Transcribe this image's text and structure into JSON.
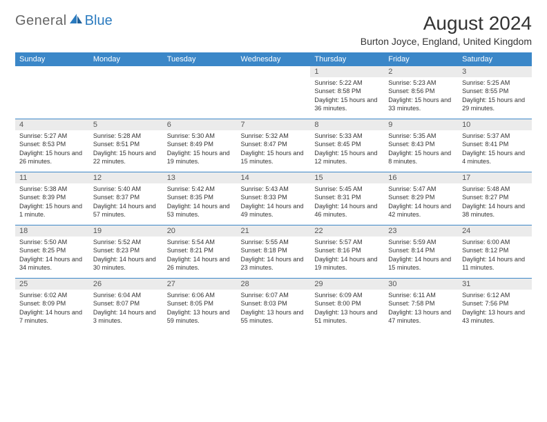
{
  "brand": {
    "part1": "General",
    "part2": "Blue"
  },
  "title": "August 2024",
  "location": "Burton Joyce, England, United Kingdom",
  "colors": {
    "header_bg": "#3b87c8",
    "header_text": "#ffffff",
    "daynum_bg": "#ebebeb",
    "rule": "#3b87c8",
    "brand_gray": "#666666",
    "brand_blue": "#2b7bbf"
  },
  "weekdays": [
    "Sunday",
    "Monday",
    "Tuesday",
    "Wednesday",
    "Thursday",
    "Friday",
    "Saturday"
  ],
  "startOffset": 4,
  "days": [
    {
      "n": 1,
      "sr": "5:22 AM",
      "ss": "8:58 PM",
      "dl": "15 hours and 36 minutes."
    },
    {
      "n": 2,
      "sr": "5:23 AM",
      "ss": "8:56 PM",
      "dl": "15 hours and 33 minutes."
    },
    {
      "n": 3,
      "sr": "5:25 AM",
      "ss": "8:55 PM",
      "dl": "15 hours and 29 minutes."
    },
    {
      "n": 4,
      "sr": "5:27 AM",
      "ss": "8:53 PM",
      "dl": "15 hours and 26 minutes."
    },
    {
      "n": 5,
      "sr": "5:28 AM",
      "ss": "8:51 PM",
      "dl": "15 hours and 22 minutes."
    },
    {
      "n": 6,
      "sr": "5:30 AM",
      "ss": "8:49 PM",
      "dl": "15 hours and 19 minutes."
    },
    {
      "n": 7,
      "sr": "5:32 AM",
      "ss": "8:47 PM",
      "dl": "15 hours and 15 minutes."
    },
    {
      "n": 8,
      "sr": "5:33 AM",
      "ss": "8:45 PM",
      "dl": "15 hours and 12 minutes."
    },
    {
      "n": 9,
      "sr": "5:35 AM",
      "ss": "8:43 PM",
      "dl": "15 hours and 8 minutes."
    },
    {
      "n": 10,
      "sr": "5:37 AM",
      "ss": "8:41 PM",
      "dl": "15 hours and 4 minutes."
    },
    {
      "n": 11,
      "sr": "5:38 AM",
      "ss": "8:39 PM",
      "dl": "15 hours and 1 minute."
    },
    {
      "n": 12,
      "sr": "5:40 AM",
      "ss": "8:37 PM",
      "dl": "14 hours and 57 minutes."
    },
    {
      "n": 13,
      "sr": "5:42 AM",
      "ss": "8:35 PM",
      "dl": "14 hours and 53 minutes."
    },
    {
      "n": 14,
      "sr": "5:43 AM",
      "ss": "8:33 PM",
      "dl": "14 hours and 49 minutes."
    },
    {
      "n": 15,
      "sr": "5:45 AM",
      "ss": "8:31 PM",
      "dl": "14 hours and 46 minutes."
    },
    {
      "n": 16,
      "sr": "5:47 AM",
      "ss": "8:29 PM",
      "dl": "14 hours and 42 minutes."
    },
    {
      "n": 17,
      "sr": "5:48 AM",
      "ss": "8:27 PM",
      "dl": "14 hours and 38 minutes."
    },
    {
      "n": 18,
      "sr": "5:50 AM",
      "ss": "8:25 PM",
      "dl": "14 hours and 34 minutes."
    },
    {
      "n": 19,
      "sr": "5:52 AM",
      "ss": "8:23 PM",
      "dl": "14 hours and 30 minutes."
    },
    {
      "n": 20,
      "sr": "5:54 AM",
      "ss": "8:21 PM",
      "dl": "14 hours and 26 minutes."
    },
    {
      "n": 21,
      "sr": "5:55 AM",
      "ss": "8:18 PM",
      "dl": "14 hours and 23 minutes."
    },
    {
      "n": 22,
      "sr": "5:57 AM",
      "ss": "8:16 PM",
      "dl": "14 hours and 19 minutes."
    },
    {
      "n": 23,
      "sr": "5:59 AM",
      "ss": "8:14 PM",
      "dl": "14 hours and 15 minutes."
    },
    {
      "n": 24,
      "sr": "6:00 AM",
      "ss": "8:12 PM",
      "dl": "14 hours and 11 minutes."
    },
    {
      "n": 25,
      "sr": "6:02 AM",
      "ss": "8:09 PM",
      "dl": "14 hours and 7 minutes."
    },
    {
      "n": 26,
      "sr": "6:04 AM",
      "ss": "8:07 PM",
      "dl": "14 hours and 3 minutes."
    },
    {
      "n": 27,
      "sr": "6:06 AM",
      "ss": "8:05 PM",
      "dl": "13 hours and 59 minutes."
    },
    {
      "n": 28,
      "sr": "6:07 AM",
      "ss": "8:03 PM",
      "dl": "13 hours and 55 minutes."
    },
    {
      "n": 29,
      "sr": "6:09 AM",
      "ss": "8:00 PM",
      "dl": "13 hours and 51 minutes."
    },
    {
      "n": 30,
      "sr": "6:11 AM",
      "ss": "7:58 PM",
      "dl": "13 hours and 47 minutes."
    },
    {
      "n": 31,
      "sr": "6:12 AM",
      "ss": "7:56 PM",
      "dl": "13 hours and 43 minutes."
    }
  ],
  "labels": {
    "sunrise": "Sunrise:",
    "sunset": "Sunset:",
    "daylight": "Daylight:"
  }
}
